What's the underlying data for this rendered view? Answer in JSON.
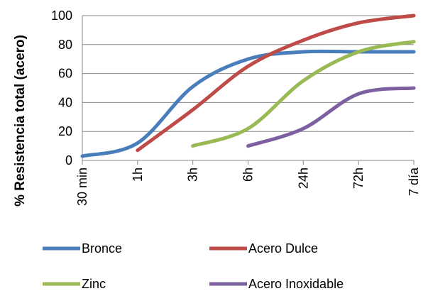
{
  "chart_data": {
    "type": "line",
    "title": "",
    "xlabel": "",
    "ylabel": "% Resistencia total (acero)",
    "categories": [
      "30 min",
      "1h",
      "3h",
      "6h",
      "24h",
      "72h",
      "7 día"
    ],
    "ylim": [
      0,
      100
    ],
    "yticks": [
      "0",
      "20",
      "40",
      "60",
      "80",
      "100"
    ],
    "grid": true,
    "legend_position": "bottom",
    "series": [
      {
        "name": "Bronce",
        "color": "#4A7EBB",
        "values": [
          3,
          12,
          51,
          70,
          75,
          75,
          75
        ]
      },
      {
        "name": "Acero Dulce",
        "color": "#BE4B48",
        "values": [
          null,
          7,
          35,
          65,
          83,
          95,
          100
        ]
      },
      {
        "name": "Zinc",
        "color": "#98B954",
        "values": [
          null,
          null,
          10,
          22,
          55,
          75,
          82
        ]
      },
      {
        "name": "Acero Inoxidable",
        "color": "#7D60A0",
        "values": [
          null,
          null,
          null,
          10,
          22,
          46,
          50
        ]
      }
    ]
  }
}
